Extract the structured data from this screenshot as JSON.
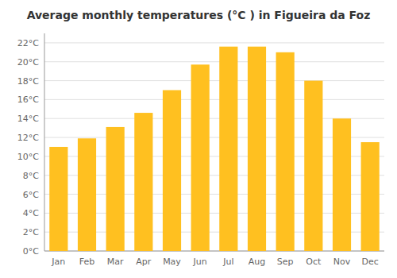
{
  "chart_data": {
    "type": "bar",
    "title": "Average monthly temperatures (°C ) in Figueira da Foz",
    "categories": [
      "Jan",
      "Feb",
      "Mar",
      "Apr",
      "May",
      "Jun",
      "Jul",
      "Aug",
      "Sep",
      "Oct",
      "Nov",
      "Dec"
    ],
    "values": [
      11.0,
      11.9,
      13.1,
      14.6,
      17.0,
      19.7,
      21.6,
      21.6,
      21.0,
      18.0,
      14.0,
      11.5
    ],
    "color": "#FFC020",
    "ylim": [
      0,
      23
    ],
    "yticks": [
      {
        "value": 0,
        "label": "0°C"
      },
      {
        "value": 2,
        "label": "2°C"
      },
      {
        "value": 4,
        "label": "4°C"
      },
      {
        "value": 6,
        "label": "6°C"
      },
      {
        "value": 8,
        "label": "8°C"
      },
      {
        "value": 10,
        "label": "10°C"
      },
      {
        "value": 12,
        "label": "12°C"
      },
      {
        "value": 14,
        "label": "14°C"
      },
      {
        "value": 16,
        "label": "16°C"
      },
      {
        "value": 18,
        "label": "18°C"
      },
      {
        "value": 20,
        "label": "20°C"
      },
      {
        "value": 22,
        "label": "22°C"
      }
    ],
    "grid": true
  }
}
